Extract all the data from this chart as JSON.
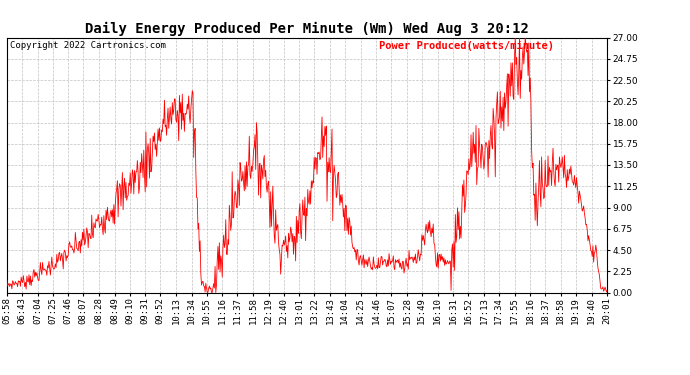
{
  "title": "Daily Energy Produced Per Minute (Wm) Wed Aug 3 20:12",
  "copyright": "Copyright 2022 Cartronics.com",
  "legend_label": "Power Produced(watts/minute)",
  "line_color": "red",
  "background_color": "white",
  "grid_color": "#bbbbbb",
  "y_min": 0.0,
  "y_max": 27.0,
  "y_ticks": [
    0.0,
    2.25,
    4.5,
    6.75,
    9.0,
    11.25,
    13.5,
    15.75,
    18.0,
    20.25,
    22.5,
    24.75,
    27.0
  ],
  "x_labels": [
    "05:58",
    "06:43",
    "07:04",
    "07:25",
    "07:46",
    "08:07",
    "08:28",
    "08:49",
    "09:10",
    "09:31",
    "09:52",
    "10:13",
    "10:34",
    "10:55",
    "11:16",
    "11:37",
    "11:58",
    "12:19",
    "12:40",
    "13:01",
    "13:22",
    "13:43",
    "14:04",
    "14:25",
    "14:46",
    "15:07",
    "15:28",
    "15:49",
    "16:10",
    "16:31",
    "16:52",
    "17:13",
    "17:34",
    "17:55",
    "18:16",
    "18:37",
    "18:58",
    "19:19",
    "19:40",
    "20:01"
  ],
  "title_fontsize": 10,
  "axis_fontsize": 6.5,
  "legend_fontsize": 7.5,
  "copyright_fontsize": 6.5
}
